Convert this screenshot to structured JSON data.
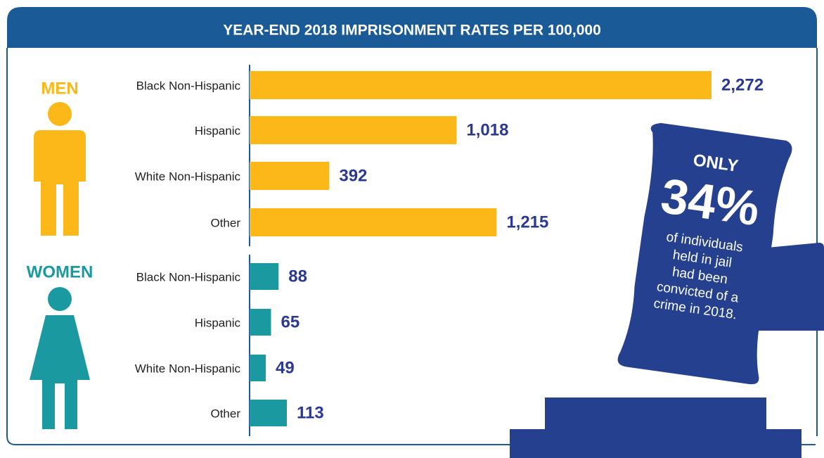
{
  "header": {
    "title": "YEAR-END 2018 IMPRISONMENT RATES PER 100,000"
  },
  "chart_data": [
    {
      "type": "bar",
      "orientation": "horizontal",
      "group_label": "MEN",
      "color": "#fbb818",
      "categories": [
        "Black Non-Hispanic",
        "Hispanic",
        "White Non-Hispanic",
        "Other"
      ],
      "values": [
        2272,
        1018,
        392,
        1215
      ],
      "value_labels": [
        "2,272",
        "1,018",
        "392",
        "1,215"
      ]
    },
    {
      "type": "bar",
      "orientation": "horizontal",
      "group_label": "WOMEN",
      "color": "#1a9aa0",
      "categories": [
        "Black Non-Hispanic",
        "Hispanic",
        "White Non-Hispanic",
        "Other"
      ],
      "values": [
        88,
        65,
        49,
        113
      ],
      "value_labels": [
        "88",
        "65",
        "49",
        "113"
      ]
    }
  ],
  "callout": {
    "top": "ONLY",
    "big": "34%",
    "lines": [
      "of individuals",
      "held in jail",
      "had been",
      "convicted of a",
      "crime in 2018."
    ]
  }
}
